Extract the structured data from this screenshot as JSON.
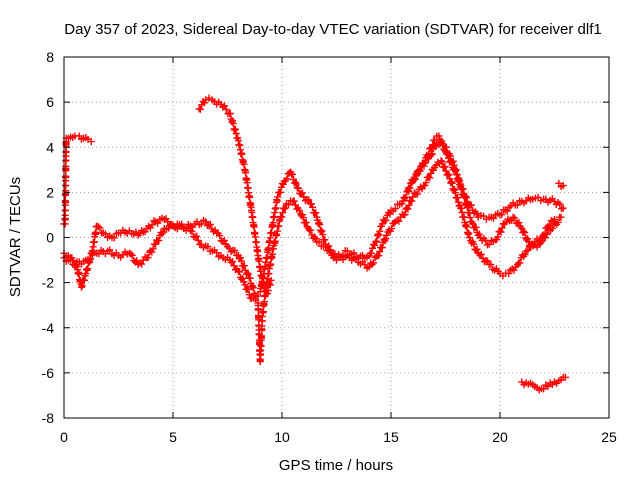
{
  "chart_data": {
    "type": "scatter",
    "title": "Day 357 of 2023, Sidereal Day-to-day VTEC variation (SDTVAR) for receiver dlf1",
    "xlabel": "GPS time / hours",
    "ylabel": "SDTVAR / TECUs",
    "xlim": [
      0,
      25
    ],
    "ylim": [
      -8,
      8
    ],
    "x_ticks": [
      0,
      5,
      10,
      15,
      20,
      25
    ],
    "y_ticks": [
      -8,
      -6,
      -4,
      -2,
      0,
      2,
      4,
      6,
      8
    ],
    "grid": true,
    "marker": "+",
    "color": "#ff0000",
    "series": [
      {
        "name": "track-a",
        "points": [
          [
            0.0,
            0.6
          ],
          [
            0.05,
            0.6
          ],
          [
            0.1,
            4.4
          ],
          [
            0.3,
            4.45
          ],
          [
            0.5,
            4.5
          ],
          [
            0.7,
            4.5
          ],
          [
            0.9,
            4.4
          ],
          [
            1.1,
            4.35
          ],
          [
            1.25,
            4.25
          ]
        ]
      },
      {
        "name": "track-b",
        "points": [
          [
            0.0,
            -0.7
          ],
          [
            0.3,
            -0.9
          ],
          [
            0.6,
            -1.3
          ],
          [
            0.8,
            -2.2
          ],
          [
            1.0,
            -1.6
          ],
          [
            1.3,
            -0.6
          ],
          [
            1.5,
            0.5
          ],
          [
            1.8,
            0.2
          ],
          [
            2.2,
            0.0
          ],
          [
            2.6,
            0.2
          ],
          [
            3.0,
            0.3
          ],
          [
            3.4,
            0.1
          ],
          [
            3.8,
            0.4
          ],
          [
            4.2,
            0.7
          ],
          [
            4.6,
            0.8
          ],
          [
            5.0,
            0.5
          ],
          [
            5.5,
            0.4
          ],
          [
            6.0,
            0.6
          ],
          [
            6.5,
            0.7
          ],
          [
            7.0,
            0.2
          ],
          [
            7.5,
            -0.4
          ],
          [
            8.0,
            -0.8
          ],
          [
            8.5,
            -1.8
          ],
          [
            8.8,
            -2.6
          ],
          [
            9.0,
            -2.4
          ],
          [
            9.2,
            -1.4
          ],
          [
            9.5,
            0.2
          ],
          [
            9.8,
            1.8
          ],
          [
            10.1,
            2.5
          ],
          [
            10.4,
            2.9
          ],
          [
            10.7,
            2.2
          ],
          [
            11.0,
            1.8
          ],
          [
            11.3,
            1.5
          ],
          [
            11.6,
            0.9
          ],
          [
            12.0,
            -0.3
          ],
          [
            12.5,
            -0.9
          ],
          [
            13.0,
            -0.6
          ],
          [
            13.5,
            -0.9
          ],
          [
            14.0,
            -0.8
          ],
          [
            14.3,
            -0.2
          ],
          [
            14.6,
            0.6
          ],
          [
            15.0,
            1.2
          ],
          [
            15.5,
            1.5
          ],
          [
            16.0,
            2.5
          ],
          [
            16.5,
            3.3
          ],
          [
            17.0,
            4.3
          ],
          [
            17.2,
            4.5
          ],
          [
            17.5,
            3.8
          ],
          [
            18.0,
            2.8
          ],
          [
            18.5,
            1.6
          ],
          [
            19.0,
            0.9
          ],
          [
            19.5,
            0.9
          ],
          [
            20.0,
            1.0
          ],
          [
            20.5,
            1.4
          ],
          [
            21.0,
            1.6
          ],
          [
            21.5,
            1.7
          ],
          [
            22.0,
            1.7
          ],
          [
            22.5,
            1.6
          ],
          [
            22.9,
            1.3
          ]
        ]
      },
      {
        "name": "track-c",
        "points": [
          [
            0.0,
            -0.9
          ],
          [
            0.5,
            -1.2
          ],
          [
            1.0,
            -1.0
          ],
          [
            1.5,
            -0.7
          ],
          [
            2.0,
            -0.6
          ],
          [
            2.5,
            -0.8
          ],
          [
            3.0,
            -0.7
          ],
          [
            3.4,
            -1.2
          ],
          [
            3.8,
            -0.9
          ],
          [
            4.2,
            -0.3
          ],
          [
            4.6,
            0.4
          ],
          [
            5.2,
            0.6
          ],
          [
            5.8,
            0.3
          ],
          [
            6.3,
            -0.3
          ],
          [
            6.8,
            -0.6
          ],
          [
            7.2,
            -0.8
          ],
          [
            7.6,
            -1.0
          ],
          [
            8.0,
            -1.5
          ],
          [
            8.3,
            -2.1
          ],
          [
            8.6,
            -2.7
          ],
          [
            8.9,
            -2.9
          ],
          [
            9.0,
            -5.5
          ],
          [
            9.1,
            -3.5
          ],
          [
            9.3,
            -2.0
          ],
          [
            9.6,
            -0.5
          ],
          [
            9.9,
            0.8
          ],
          [
            10.2,
            1.5
          ],
          [
            10.5,
            1.6
          ],
          [
            10.8,
            1.2
          ],
          [
            11.2,
            0.4
          ],
          [
            11.6,
            -0.2
          ],
          [
            12.0,
            -0.4
          ],
          [
            12.5,
            -1.0
          ],
          [
            13.0,
            -0.8
          ],
          [
            13.5,
            -1.1
          ],
          [
            14.0,
            -1.3
          ],
          [
            14.4,
            -0.8
          ],
          [
            14.8,
            0.1
          ],
          [
            15.2,
            0.7
          ],
          [
            15.6,
            1.0
          ],
          [
            16.0,
            1.8
          ],
          [
            16.5,
            2.3
          ],
          [
            17.0,
            3.1
          ],
          [
            17.3,
            3.4
          ],
          [
            17.7,
            2.6
          ],
          [
            18.2,
            1.3
          ],
          [
            18.6,
            0.0
          ],
          [
            19.0,
            -0.7
          ],
          [
            19.5,
            -1.2
          ],
          [
            20.0,
            -1.6
          ],
          [
            20.4,
            -1.6
          ],
          [
            20.8,
            -1.2
          ],
          [
            21.2,
            -0.6
          ],
          [
            21.6,
            -0.2
          ],
          [
            22.0,
            0.0
          ],
          [
            22.4,
            0.4
          ],
          [
            22.8,
            0.9
          ]
        ]
      },
      {
        "name": "track-d",
        "points": [
          [
            6.2,
            5.7
          ],
          [
            6.5,
            6.1
          ],
          [
            6.8,
            6.1
          ],
          [
            7.2,
            5.9
          ],
          [
            7.6,
            5.5
          ],
          [
            8.0,
            4.3
          ],
          [
            8.3,
            3.0
          ],
          [
            8.6,
            1.2
          ],
          [
            8.9,
            -0.8
          ],
          [
            9.1,
            -2.0
          ],
          [
            9.3,
            -2.5
          ],
          [
            9.5,
            -1.9
          ]
        ]
      },
      {
        "name": "track-e",
        "points": [
          [
            15.8,
            2.2
          ],
          [
            16.3,
            3.0
          ],
          [
            16.8,
            3.6
          ],
          [
            17.1,
            4.2
          ],
          [
            17.5,
            4.0
          ],
          [
            17.9,
            3.2
          ],
          [
            18.3,
            1.9
          ],
          [
            18.7,
            0.7
          ],
          [
            19.1,
            0.0
          ],
          [
            19.5,
            -0.3
          ],
          [
            19.8,
            -0.1
          ],
          [
            20.2,
            0.6
          ],
          [
            20.6,
            0.9
          ],
          [
            21.0,
            0.4
          ],
          [
            21.4,
            -0.4
          ],
          [
            21.8,
            -0.3
          ],
          [
            22.2,
            0.5
          ],
          [
            22.5,
            0.8
          ]
        ]
      },
      {
        "name": "track-f",
        "points": [
          [
            21.0,
            -6.4
          ],
          [
            21.3,
            -6.5
          ],
          [
            21.6,
            -6.6
          ],
          [
            21.9,
            -6.7
          ],
          [
            22.2,
            -6.6
          ],
          [
            22.5,
            -6.4
          ],
          [
            22.8,
            -6.3
          ],
          [
            23.0,
            -6.2
          ]
        ]
      },
      {
        "name": "track-g",
        "points": [
          [
            22.7,
            2.4
          ],
          [
            22.9,
            2.3
          ]
        ]
      }
    ]
  }
}
